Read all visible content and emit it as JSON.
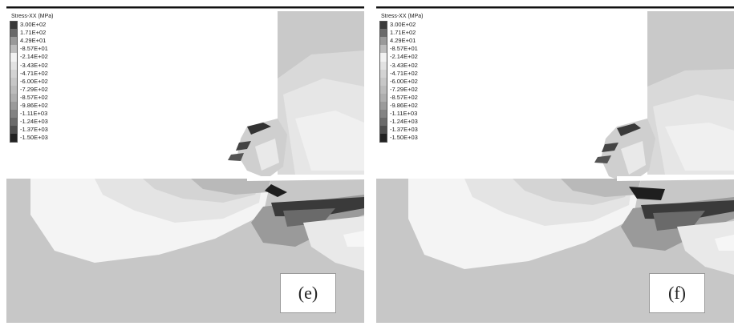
{
  "legend": {
    "title": "Stress-XX (MPa)",
    "entries": [
      {
        "label": "3.00E+02",
        "color": "#3a3a3a"
      },
      {
        "label": "1.71E+02",
        "color": "#6a6a6a"
      },
      {
        "label": "4.29E+01",
        "color": "#9a9a9a"
      },
      {
        "label": "-8.57E+01",
        "color": "#bdbdbd"
      },
      {
        "label": "-2.14E+02",
        "color": "#f2f2f2"
      },
      {
        "label": "-3.43E+02",
        "color": "#e2e2e2"
      },
      {
        "label": "-4.71E+02",
        "color": "#d3d3d3"
      },
      {
        "label": "-6.00E+02",
        "color": "#c7c7c7"
      },
      {
        "label": "-7.29E+02",
        "color": "#bbbbbb"
      },
      {
        "label": "-8.57E+02",
        "color": "#aeaeae"
      },
      {
        "label": "-9.86E+02",
        "color": "#9b9b9b"
      },
      {
        "label": "-1.11E+03",
        "color": "#838383"
      },
      {
        "label": "-1.24E+03",
        "color": "#6b6b6b"
      },
      {
        "label": "-1.37E+03",
        "color": "#4e4e4e"
      },
      {
        "label": "-1.50E+03",
        "color": "#222222"
      }
    ]
  },
  "panels": [
    {
      "label": "(e)"
    },
    {
      "label": "(f)"
    }
  ]
}
